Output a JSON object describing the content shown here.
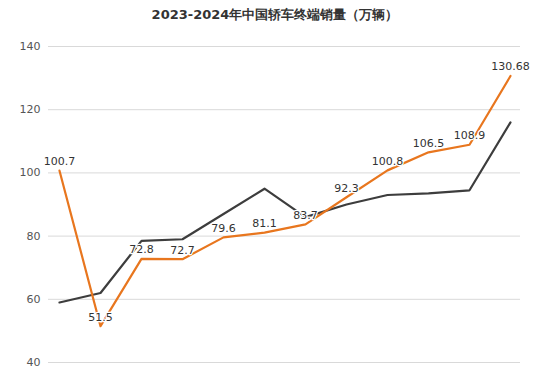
{
  "chart_data": {
    "type": "line",
    "title": "2023-2024年中国轿车终端销量（万辆）",
    "categories": [
      null,
      null,
      null,
      null,
      null,
      null,
      null,
      null,
      null,
      null,
      null,
      null
    ],
    "series": [
      {
        "color": "#3d3d3d",
        "values": [
          59,
          62,
          78.5,
          79,
          87,
          95,
          86,
          90,
          93,
          93.5,
          94.5,
          116
        ]
      },
      {
        "color": "#e8761e",
        "values": [
          100.7,
          51.5,
          72.8,
          72.7,
          79.6,
          81.1,
          83.7,
          92.3,
          100.8,
          106.5,
          108.9,
          130.68
        ],
        "data_labels": true
      }
    ],
    "ylim": [
      40,
      140
    ],
    "yticks": [
      40,
      60,
      80,
      100,
      120,
      140
    ],
    "grid": true,
    "tick_labels": "y"
  }
}
